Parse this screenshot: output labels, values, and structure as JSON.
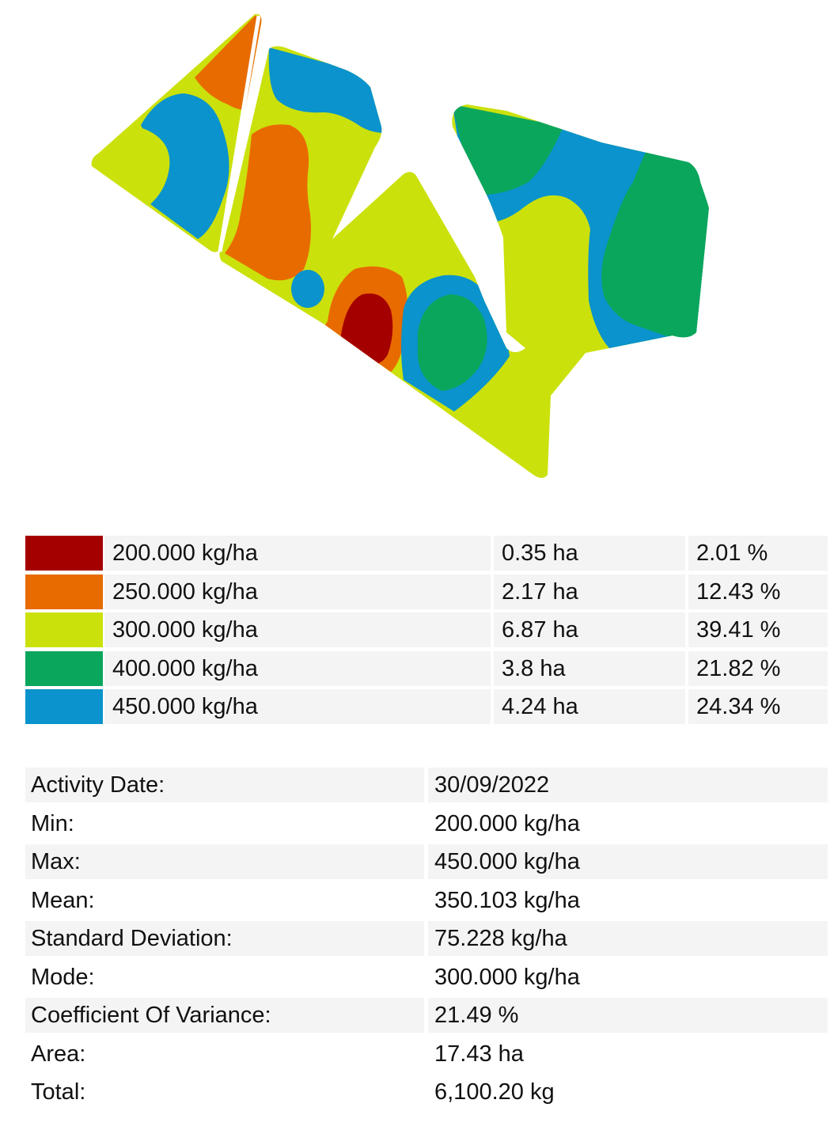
{
  "colors": {
    "dark_red": "#a50000",
    "orange": "#e86b00",
    "yellow_green": "#cbe10c",
    "green": "#0aa65c",
    "blue": "#0a93cc"
  },
  "legend": [
    {
      "rate": "200.000 kg/ha",
      "area": "0.35 ha",
      "percent": "2.01 %",
      "color": "#a50000"
    },
    {
      "rate": "250.000 kg/ha",
      "area": "2.17 ha",
      "percent": "12.43 %",
      "color": "#e86b00"
    },
    {
      "rate": "300.000 kg/ha",
      "area": "6.87 ha",
      "percent": "39.41 %",
      "color": "#cbe10c"
    },
    {
      "rate": "400.000 kg/ha",
      "area": "3.8 ha",
      "percent": "21.82 %",
      "color": "#0aa65c"
    },
    {
      "rate": "450.000 kg/ha",
      "area": "4.24 ha",
      "percent": "24.34 %",
      "color": "#0a93cc"
    }
  ],
  "stats": [
    {
      "label": "Activity Date:",
      "value": "30/09/2022"
    },
    {
      "label": "Min:",
      "value": "200.000 kg/ha"
    },
    {
      "label": "Max:",
      "value": "450.000 kg/ha"
    },
    {
      "label": "Mean:",
      "value": "350.103 kg/ha"
    },
    {
      "label": "Standard Deviation:",
      "value": "75.228 kg/ha"
    },
    {
      "label": "Mode:",
      "value": "300.000 kg/ha"
    },
    {
      "label": "Coefficient Of Variance:",
      "value": "21.49 %"
    },
    {
      "label": "Area:",
      "value": "17.43 ha"
    },
    {
      "label": "Total:",
      "value": "6,100.20 kg"
    }
  ]
}
